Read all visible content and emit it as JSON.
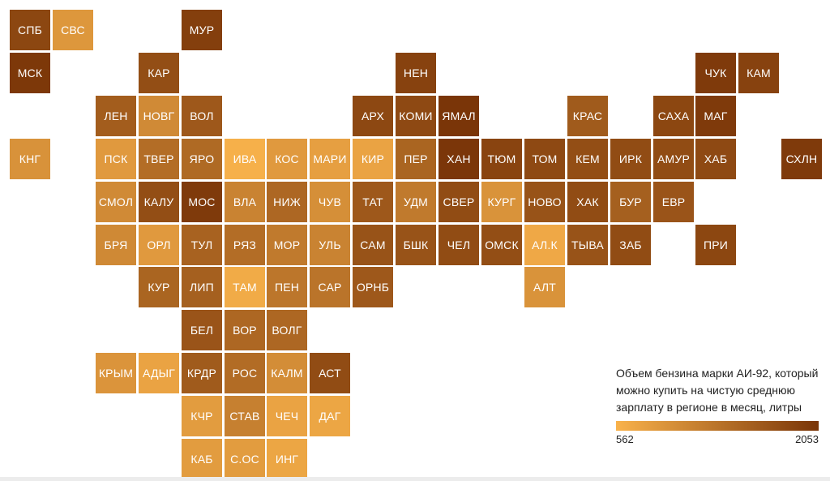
{
  "colors": {
    "low": "#f9b24b",
    "high": "#7a3508"
  },
  "legend": {
    "title": "Объем бензина марки АИ-92, который можно купить на чистую среднюю зарплату в регионе в месяц, литры",
    "min_label": "562",
    "max_label": "2053"
  },
  "regions": [
    {
      "label": "СПБ",
      "col": 0,
      "row": 0,
      "level": 0.86
    },
    {
      "label": "СВС",
      "col": 1,
      "row": 0,
      "level": 0.22
    },
    {
      "label": "МУР",
      "col": 4,
      "row": 0,
      "level": 0.92
    },
    {
      "label": "МСК",
      "col": 0,
      "row": 1,
      "level": 0.98
    },
    {
      "label": "КАР",
      "col": 3,
      "row": 1,
      "level": 0.8
    },
    {
      "label": "НЕН",
      "col": 9,
      "row": 1,
      "level": 0.9
    },
    {
      "label": "ЧУК",
      "col": 16,
      "row": 1,
      "level": 0.96
    },
    {
      "label": "КАМ",
      "col": 17,
      "row": 1,
      "level": 0.9
    },
    {
      "label": "ЛЕН",
      "col": 2,
      "row": 2,
      "level": 0.68
    },
    {
      "label": "НОВГ",
      "col": 3,
      "row": 2,
      "level": 0.32
    },
    {
      "label": "ВОЛ",
      "col": 4,
      "row": 2,
      "level": 0.72
    },
    {
      "label": "АРХ",
      "col": 8,
      "row": 2,
      "level": 0.85
    },
    {
      "label": "КОМИ",
      "col": 9,
      "row": 2,
      "level": 0.84
    },
    {
      "label": "ЯМАЛ",
      "col": 10,
      "row": 2,
      "level": 1.0
    },
    {
      "label": "КРАС",
      "col": 13,
      "row": 2,
      "level": 0.7
    },
    {
      "label": "САХА",
      "col": 15,
      "row": 2,
      "level": 0.86
    },
    {
      "label": "МАГ",
      "col": 16,
      "row": 2,
      "level": 0.96
    },
    {
      "label": "КНГ",
      "col": 0,
      "row": 3,
      "level": 0.26
    },
    {
      "label": "ПСК",
      "col": 2,
      "row": 3,
      "level": 0.2
    },
    {
      "label": "ТВЕР",
      "col": 3,
      "row": 3,
      "level": 0.55
    },
    {
      "label": "ЯРО",
      "col": 4,
      "row": 3,
      "level": 0.58
    },
    {
      "label": "ИВА",
      "col": 5,
      "row": 3,
      "level": 0.02
    },
    {
      "label": "КОС",
      "col": 6,
      "row": 3,
      "level": 0.2
    },
    {
      "label": "МАРИ",
      "col": 7,
      "row": 3,
      "level": 0.15
    },
    {
      "label": "КИР",
      "col": 8,
      "row": 3,
      "level": 0.12
    },
    {
      "label": "ПЕР",
      "col": 9,
      "row": 3,
      "level": 0.62
    },
    {
      "label": "ХАН",
      "col": 10,
      "row": 3,
      "level": 0.99
    },
    {
      "label": "ТЮМ",
      "col": 11,
      "row": 3,
      "level": 0.88
    },
    {
      "label": "ТОМ",
      "col": 12,
      "row": 3,
      "level": 0.84
    },
    {
      "label": "КЕМ",
      "col": 13,
      "row": 3,
      "level": 0.8
    },
    {
      "label": "ИРК",
      "col": 14,
      "row": 3,
      "level": 0.82
    },
    {
      "label": "АМУР",
      "col": 15,
      "row": 3,
      "level": 0.82
    },
    {
      "label": "ХАБ",
      "col": 16,
      "row": 3,
      "level": 0.84
    },
    {
      "label": "СХЛН",
      "col": 18,
      "row": 3,
      "level": 0.96
    },
    {
      "label": "СМОЛ",
      "col": 2,
      "row": 4,
      "level": 0.32
    },
    {
      "label": "КАЛУ",
      "col": 3,
      "row": 4,
      "level": 0.8
    },
    {
      "label": "МОС",
      "col": 4,
      "row": 4,
      "level": 0.96
    },
    {
      "label": "ВЛА",
      "col": 5,
      "row": 4,
      "level": 0.38
    },
    {
      "label": "НИЖ",
      "col": 6,
      "row": 4,
      "level": 0.6
    },
    {
      "label": "ЧУВ",
      "col": 7,
      "row": 4,
      "level": 0.28
    },
    {
      "label": "ТАТ",
      "col": 8,
      "row": 4,
      "level": 0.72
    },
    {
      "label": "УДМ",
      "col": 9,
      "row": 4,
      "level": 0.45
    },
    {
      "label": "СВЕР",
      "col": 10,
      "row": 4,
      "level": 0.82
    },
    {
      "label": "КУРГ",
      "col": 11,
      "row": 4,
      "level": 0.25
    },
    {
      "label": "НОВО",
      "col": 12,
      "row": 4,
      "level": 0.76
    },
    {
      "label": "ХАК",
      "col": 13,
      "row": 4,
      "level": 0.82
    },
    {
      "label": "БУР",
      "col": 14,
      "row": 4,
      "level": 0.66
    },
    {
      "label": "ЕВР",
      "col": 15,
      "row": 4,
      "level": 0.75
    },
    {
      "label": "БРЯ",
      "col": 2,
      "row": 5,
      "level": 0.33
    },
    {
      "label": "ОРЛ",
      "col": 3,
      "row": 5,
      "level": 0.2
    },
    {
      "label": "ТУЛ",
      "col": 4,
      "row": 5,
      "level": 0.64
    },
    {
      "label": "РЯЗ",
      "col": 5,
      "row": 5,
      "level": 0.55
    },
    {
      "label": "МОР",
      "col": 6,
      "row": 5,
      "level": 0.45
    },
    {
      "label": "УЛЬ",
      "col": 7,
      "row": 5,
      "level": 0.38
    },
    {
      "label": "САМ",
      "col": 8,
      "row": 5,
      "level": 0.76
    },
    {
      "label": "БШК",
      "col": 9,
      "row": 5,
      "level": 0.76
    },
    {
      "label": "ЧЕЛ",
      "col": 10,
      "row": 5,
      "level": 0.82
    },
    {
      "label": "ОМСК",
      "col": 11,
      "row": 5,
      "level": 0.8
    },
    {
      "label": "АЛ.К",
      "col": 12,
      "row": 5,
      "level": 0.08
    },
    {
      "label": "ТЫВА",
      "col": 13,
      "row": 5,
      "level": 0.76
    },
    {
      "label": "ЗАБ",
      "col": 14,
      "row": 5,
      "level": 0.82
    },
    {
      "label": "ПРИ",
      "col": 16,
      "row": 5,
      "level": 0.86
    },
    {
      "label": "КУР",
      "col": 3,
      "row": 6,
      "level": 0.62
    },
    {
      "label": "ЛИП",
      "col": 4,
      "row": 6,
      "level": 0.66
    },
    {
      "label": "ТАМ",
      "col": 5,
      "row": 6,
      "level": 0.06
    },
    {
      "label": "ПЕН",
      "col": 6,
      "row": 6,
      "level": 0.48
    },
    {
      "label": "САР",
      "col": 7,
      "row": 6,
      "level": 0.5
    },
    {
      "label": "ОРНБ",
      "col": 8,
      "row": 6,
      "level": 0.72
    },
    {
      "label": "АЛТ",
      "col": 12,
      "row": 6,
      "level": 0.25
    },
    {
      "label": "БЕЛ",
      "col": 4,
      "row": 7,
      "level": 0.75
    },
    {
      "label": "ВОР",
      "col": 5,
      "row": 7,
      "level": 0.6
    },
    {
      "label": "ВОЛГ",
      "col": 6,
      "row": 7,
      "level": 0.6
    },
    {
      "label": "КРЫМ",
      "col": 2,
      "row": 8,
      "level": 0.24
    },
    {
      "label": "АДЫГ",
      "col": 3,
      "row": 8,
      "level": 0.12
    },
    {
      "label": "КРДР",
      "col": 4,
      "row": 8,
      "level": 0.7
    },
    {
      "label": "РОС",
      "col": 5,
      "row": 8,
      "level": 0.56
    },
    {
      "label": "КАЛМ",
      "col": 6,
      "row": 8,
      "level": 0.3
    },
    {
      "label": "АСТ",
      "col": 7,
      "row": 8,
      "level": 0.82
    },
    {
      "label": "КЧР",
      "col": 4,
      "row": 9,
      "level": 0.18
    },
    {
      "label": "СТАВ",
      "col": 5,
      "row": 9,
      "level": 0.4
    },
    {
      "label": "ЧЕЧ",
      "col": 6,
      "row": 9,
      "level": 0.12
    },
    {
      "label": "ДАГ",
      "col": 7,
      "row": 9,
      "level": 0.1
    },
    {
      "label": "КАБ",
      "col": 4,
      "row": 10,
      "level": 0.18
    },
    {
      "label": "С.ОС",
      "col": 5,
      "row": 10,
      "level": 0.18
    },
    {
      "label": "ИНГ",
      "col": 6,
      "row": 10,
      "level": 0.1
    }
  ]
}
